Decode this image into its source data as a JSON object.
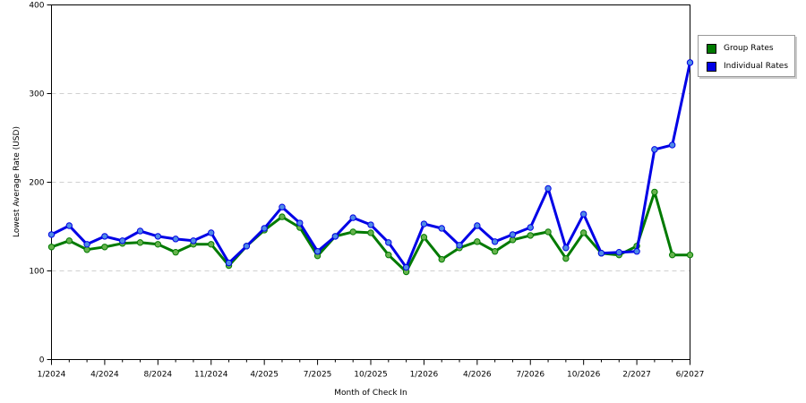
{
  "chart_data": {
    "type": "line",
    "xlabel": "Month of Check In",
    "ylabel": "Lowest Average Rate (USD)",
    "ylim": [
      0,
      400
    ],
    "yticks": [
      0,
      100,
      200,
      300,
      400
    ],
    "xtick_labels": [
      "1/2024",
      "4/2024",
      "8/2024",
      "11/2024",
      "4/2025",
      "7/2025",
      "10/2025",
      "1/2026",
      "4/2026",
      "7/2026",
      "10/2026",
      "2/2027",
      "6/2027"
    ],
    "grid": "horizontal dashed",
    "legend_position": "right",
    "series": [
      {
        "name": "Group Rates",
        "color": "#007a00",
        "values": [
          127,
          134,
          124,
          127,
          131,
          132,
          130,
          121,
          130,
          130,
          106,
          128,
          146,
          161,
          149,
          117,
          139,
          144,
          143,
          118,
          99,
          138,
          113,
          126,
          133,
          122,
          135,
          140,
          144,
          114,
          143,
          120,
          118,
          128,
          189,
          118,
          118
        ]
      },
      {
        "name": "Individual Rates",
        "color": "#0000e6",
        "values": [
          141,
          151,
          130,
          139,
          134,
          145,
          139,
          136,
          134,
          143,
          109,
          128,
          148,
          172,
          154,
          122,
          139,
          160,
          152,
          132,
          104,
          153,
          148,
          129,
          151,
          133,
          141,
          149,
          193,
          126,
          164,
          120,
          121,
          122,
          237,
          242,
          335
        ]
      }
    ]
  }
}
